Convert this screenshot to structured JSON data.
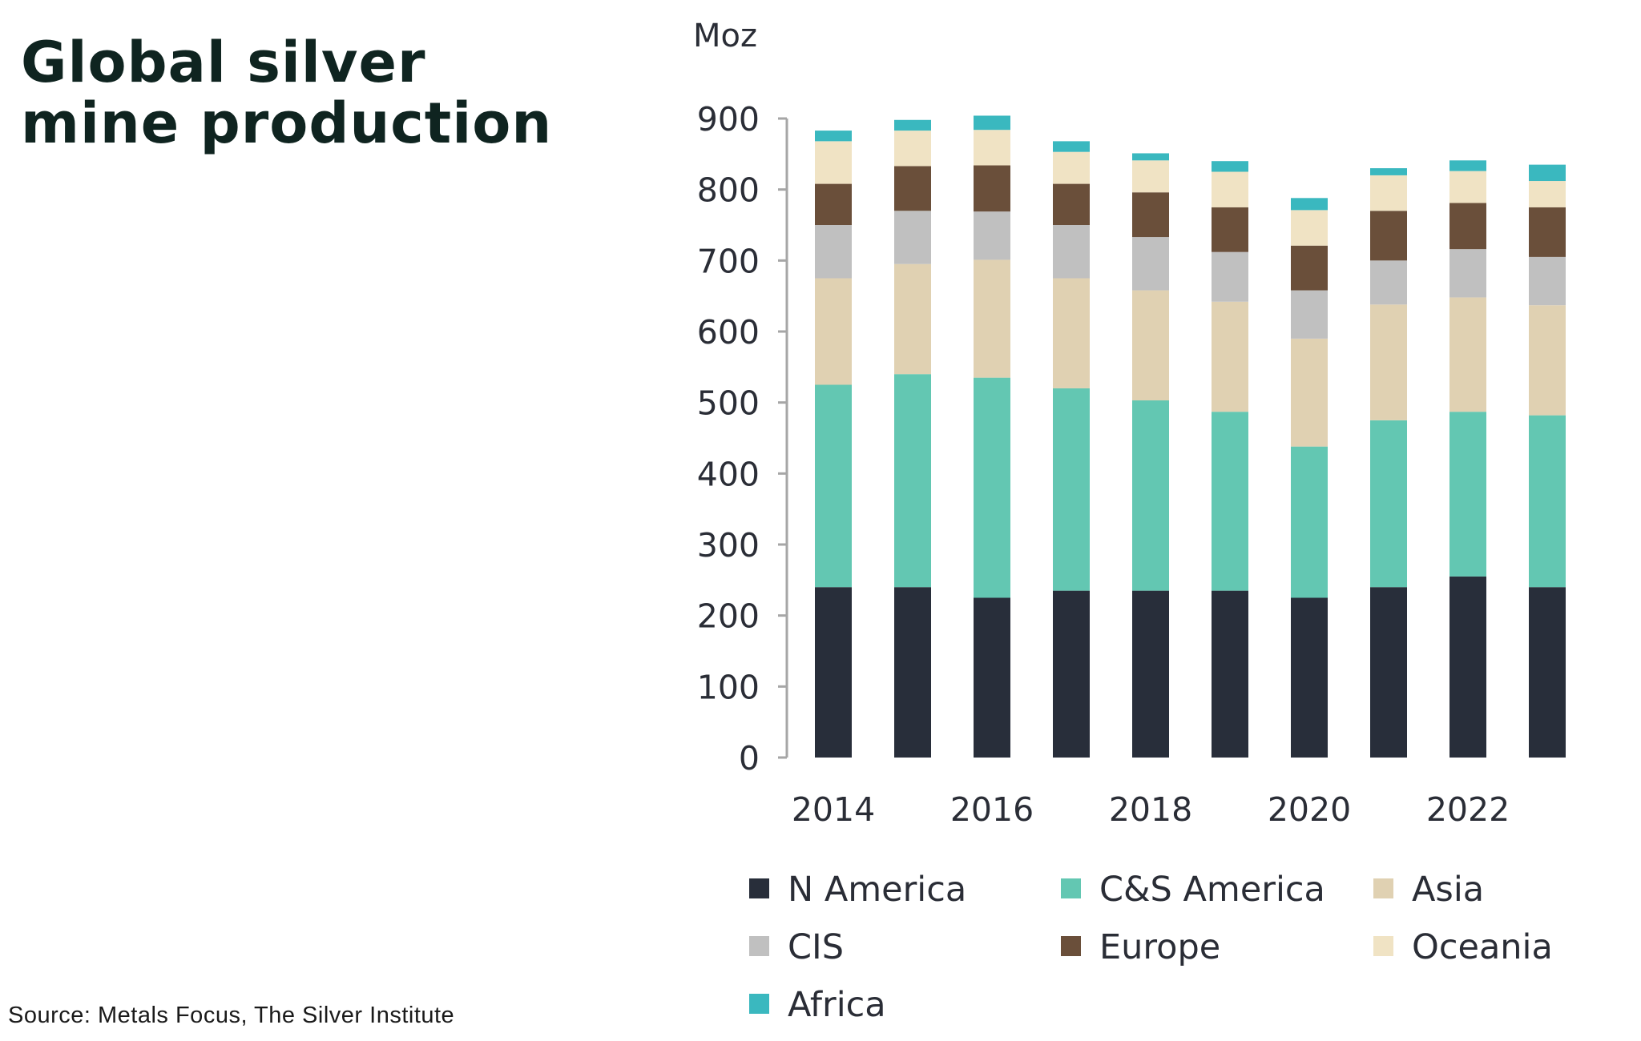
{
  "title": {
    "line1": "Global silver",
    "line2": "mine production"
  },
  "source": "Source: Metals Focus, The Silver Institute",
  "colors": {
    "N America": "#282e3a",
    "C&S America": "#63c7b2",
    "Asia": "#e0d1b2",
    "CIS": "#c0c0c0",
    "Europe": "#6a4f3a",
    "Oceania": "#f0e3c4",
    "Africa": "#3ab8bf"
  },
  "chart_data": {
    "type": "bar",
    "stacked": true,
    "unit_label": "Moz",
    "ylim": [
      0,
      900
    ],
    "yticks": [
      0,
      100,
      200,
      300,
      400,
      500,
      600,
      700,
      800,
      900
    ],
    "categories": [
      "2014",
      "2015",
      "2016",
      "2017",
      "2018",
      "2019",
      "2020",
      "2021",
      "2022",
      "2023"
    ],
    "xtick_labels": [
      "2014",
      "",
      "2016",
      "",
      "2018",
      "",
      "2020",
      "",
      "2022",
      ""
    ],
    "series": [
      {
        "name": "N America",
        "values": [
          240,
          240,
          225,
          235,
          235,
          235,
          225,
          240,
          255,
          240
        ]
      },
      {
        "name": "C&S America",
        "values": [
          285,
          300,
          310,
          285,
          268,
          252,
          213,
          235,
          232,
          242
        ]
      },
      {
        "name": "Asia",
        "values": [
          150,
          155,
          166,
          155,
          155,
          155,
          152,
          163,
          161,
          155
        ]
      },
      {
        "name": "CIS",
        "values": [
          75,
          75,
          68,
          75,
          75,
          70,
          68,
          62,
          68,
          68
        ]
      },
      {
        "name": "Europe",
        "values": [
          58,
          63,
          65,
          58,
          63,
          63,
          63,
          70,
          65,
          70
        ]
      },
      {
        "name": "Oceania",
        "values": [
          60,
          50,
          50,
          45,
          45,
          50,
          50,
          50,
          45,
          37
        ]
      },
      {
        "name": "Africa",
        "values": [
          15,
          15,
          20,
          15,
          10,
          15,
          17,
          10,
          15,
          23
        ]
      }
    ],
    "legend_order": [
      "N America",
      "C&S America",
      "Asia",
      "CIS",
      "Europe",
      "Oceania",
      "Africa"
    ],
    "legend_position": "bottom",
    "grid": false
  }
}
